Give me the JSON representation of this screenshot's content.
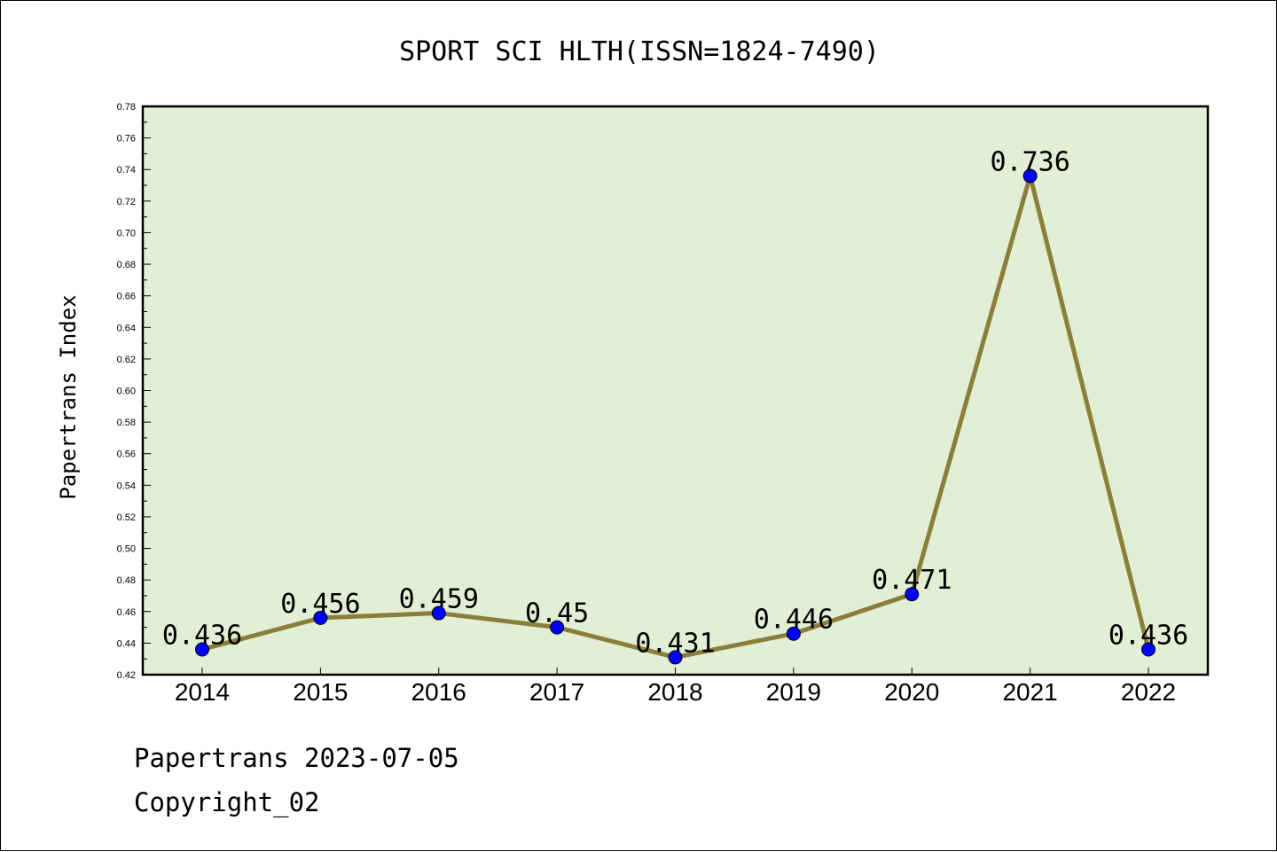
{
  "chart_data": {
    "type": "line",
    "title": "SPORT SCI HLTH(ISSN=1824-7490)",
    "ylabel": "Papertrans Index",
    "xlabel": "",
    "categories": [
      "2014",
      "2015",
      "2016",
      "2017",
      "2018",
      "2019",
      "2020",
      "2021",
      "2022"
    ],
    "series": [
      {
        "values": [
          0.436,
          0.456,
          0.459,
          0.45,
          0.431,
          0.446,
          0.471,
          0.736,
          0.436
        ],
        "data_labels": [
          "0.436",
          "0.456",
          "0.459",
          "0.45",
          "0.431",
          "0.446",
          "0.471",
          "0.736",
          "0.436"
        ]
      }
    ],
    "ylim": [
      0.42,
      0.78
    ],
    "yticks": [
      "0.42",
      "0.44",
      "0.46",
      "0.48",
      "0.50",
      "0.52",
      "0.54",
      "0.56",
      "0.58",
      "0.60",
      "0.62",
      "0.64",
      "0.66",
      "0.68",
      "0.70",
      "0.72",
      "0.74",
      "0.76",
      "0.78"
    ],
    "grid": false,
    "legend": "none",
    "colors": {
      "plot_background": "#e2efd5",
      "line": "#8b7d3a",
      "marker": "#0000ff"
    }
  },
  "footer": {
    "line1": "Papertrans 2023-07-05",
    "line2": "Copyright_02"
  }
}
